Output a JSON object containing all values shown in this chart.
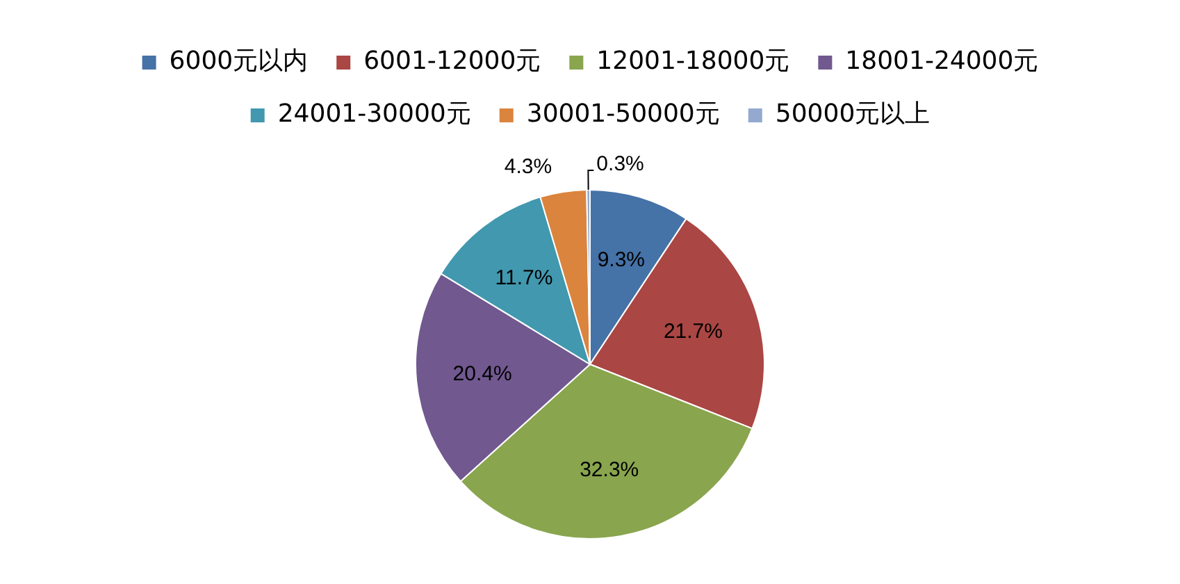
{
  "chart_data": {
    "type": "pie",
    "categories": [
      "6000元以内",
      "6001-12000元",
      "12001-18000元",
      "18001-24000元",
      "24001-30000元",
      "30001-50000元",
      "50000元以上"
    ],
    "values": [
      9.3,
      21.7,
      32.3,
      20.4,
      11.7,
      4.3,
      0.3
    ],
    "colors": [
      "#4572a7",
      "#aa4643",
      "#89a54e",
      "#71588f",
      "#4198af",
      "#db843d",
      "#93a9cf"
    ],
    "value_labels": [
      "9.3%",
      "21.7%",
      "32.3%",
      "20.4%",
      "11.7%",
      "4.3%",
      "0.3%"
    ],
    "legend": "top"
  }
}
